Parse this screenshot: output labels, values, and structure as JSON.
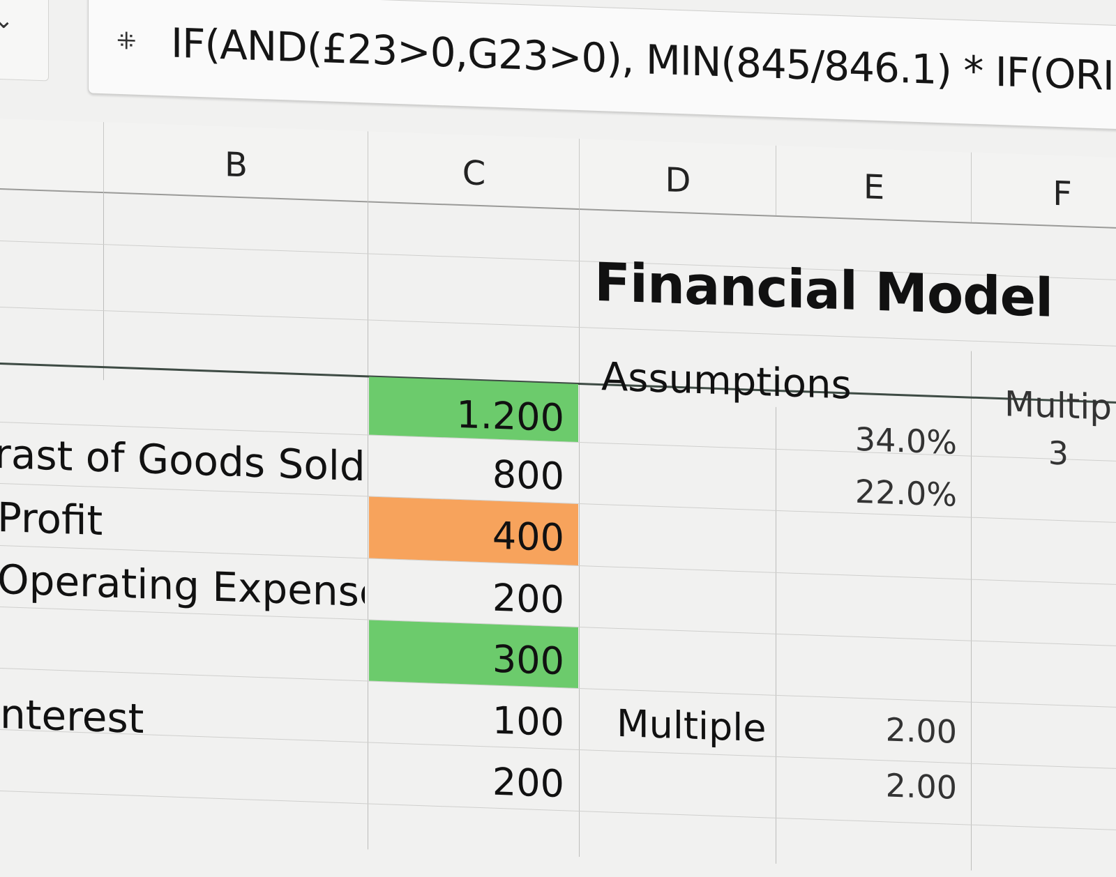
{
  "formula_bar": {
    "name_box_icon": "chevron-down-icon",
    "fx_icon": "function-icon",
    "formula": "IF(AND(£23>0,G23>0), MIN(845/846.1) * IF(ORI"
  },
  "columns": [
    "B",
    "C",
    "D",
    "E",
    "F"
  ],
  "title": "Financial Model",
  "assumptions_label": "Assumptions",
  "multiple_header": "Multip",
  "rows": [
    {
      "label": "",
      "value": "1.200",
      "fill": "#6ccb6c",
      "e": "34.0%",
      "f": "3"
    },
    {
      "label": "rast of Goods Sold",
      "value": "800",
      "fill": "",
      "e": "22.0%",
      "f": ""
    },
    {
      "label": "Profit",
      "value": "400",
      "fill": "#f7a35c",
      "e": "",
      "f": ""
    },
    {
      "label": "Operating Expenses",
      "value": "200",
      "fill": "",
      "e": "",
      "f": ""
    },
    {
      "label": "",
      "value": "300",
      "fill": "#6ccb6c",
      "e": "",
      "f": ""
    },
    {
      "label": "nterest",
      "value": "100",
      "fill": "",
      "d": "Multiple",
      "e": "2.00",
      "f": ""
    },
    {
      "label": "",
      "value": "200",
      "fill": "",
      "e": "2.00",
      "f": ""
    }
  ]
}
